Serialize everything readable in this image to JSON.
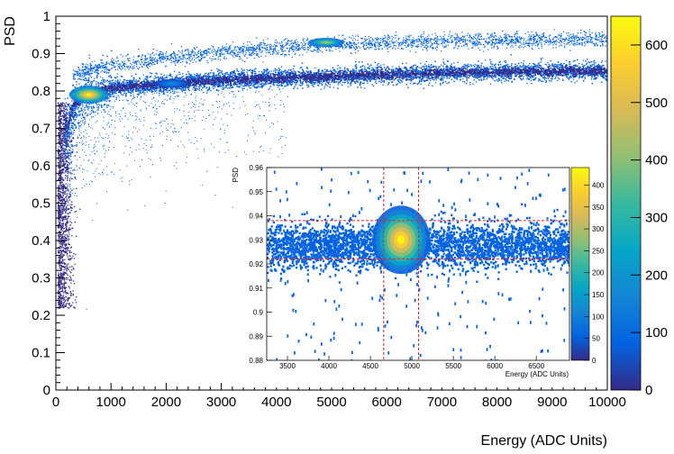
{
  "main_plot": {
    "chart_data": {
      "type": "heatmap",
      "xlabel": "Energy (ADC Units)",
      "ylabel": "PSD",
      "xlim": [
        0,
        10000
      ],
      "ylim": [
        0,
        1
      ],
      "x_ticks": [
        0,
        1000,
        2000,
        3000,
        4000,
        5000,
        6000,
        7000,
        8000,
        9000,
        10000
      ],
      "y_ticks": [
        0,
        0.1,
        0.2,
        0.3,
        0.4,
        0.5,
        0.6,
        0.7,
        0.8,
        0.9,
        1
      ],
      "x_tick_labels": [
        "0",
        "1000",
        "2000",
        "3000",
        "4000",
        "5000",
        "6000",
        "7000",
        "8000",
        "9000",
        "10000"
      ],
      "y_tick_labels": [
        "0",
        "0.1",
        "0.2",
        "0.3",
        "0.4",
        "0.5",
        "0.6",
        "0.7",
        "0.8",
        "0.9",
        "1"
      ],
      "colorbar": {
        "range": [
          0,
          650
        ],
        "ticks": [
          0,
          100,
          200,
          300,
          400,
          500,
          600
        ],
        "tick_labels": [
          "0",
          "100",
          "200",
          "300",
          "400",
          "500",
          "600"
        ]
      },
      "bands": [
        {
          "x": [
            150,
            300,
            500,
            700,
            1000,
            1500,
            2000,
            3000,
            4000,
            5000,
            6000,
            7000,
            8000,
            9000,
            10000
          ],
          "y": [
            0.68,
            0.76,
            0.79,
            0.8,
            0.81,
            0.815,
            0.82,
            0.83,
            0.835,
            0.84,
            0.845,
            0.85,
            0.852,
            0.854,
            0.855
          ]
        },
        {
          "x": [
            300,
            600,
            1000,
            1500,
            2000,
            3000,
            4000,
            5000,
            6000,
            7000,
            8000,
            9000,
            10000
          ],
          "y": [
            0.84,
            0.86,
            0.87,
            0.88,
            0.89,
            0.905,
            0.915,
            0.925,
            0.93,
            0.935,
            0.937,
            0.938,
            0.94
          ]
        }
      ],
      "hotspots": [
        {
          "x": 600,
          "y": 0.79,
          "counts": 640
        },
        {
          "x": 4900,
          "y": 0.93,
          "counts": 450
        },
        {
          "x": 2100,
          "y": 0.82,
          "counts": 180
        }
      ]
    }
  },
  "inset_plot": {
    "chart_data": {
      "type": "heatmap",
      "xlabel": "Energy (ADC Units)",
      "ylabel": "PSD",
      "xlim": [
        3250,
        6900
      ],
      "ylim": [
        0.88,
        0.96
      ],
      "x_ticks": [
        3500,
        4000,
        4500,
        5000,
        5500,
        6000,
        6500
      ],
      "y_ticks": [
        0.88,
        0.89,
        0.9,
        0.91,
        0.92,
        0.93,
        0.94,
        0.95,
        0.96
      ],
      "x_tick_labels": [
        "3500",
        "4000",
        "4500",
        "5000",
        "5500",
        "6000",
        "6500"
      ],
      "y_tick_labels": [
        "0.88",
        "0.89",
        "0.9",
        "0.91",
        "0.92",
        "0.93",
        "0.94",
        "0.95",
        "0.96"
      ],
      "colorbar": {
        "range": [
          0,
          440
        ],
        "ticks": [
          0,
          50,
          100,
          150,
          200,
          250,
          300,
          350,
          400
        ],
        "tick_labels": [
          "0",
          "50",
          "100",
          "150",
          "200",
          "250",
          "300",
          "350",
          "400"
        ]
      },
      "peak": {
        "x": 4870,
        "y": 0.93,
        "counts": 440
      },
      "cut_lines_x": [
        4660,
        5080
      ],
      "cut_lines_y": [
        0.922,
        0.938
      ],
      "cut_line_color": "#e8202a"
    }
  },
  "colors": {
    "palette": [
      "#352a87",
      "#0363e1",
      "#1485d4",
      "#06a7c6",
      "#38b99e",
      "#92bf73",
      "#d9ba56",
      "#fcce2e",
      "#f9fb0e"
    ],
    "background": "#ffffff"
  }
}
